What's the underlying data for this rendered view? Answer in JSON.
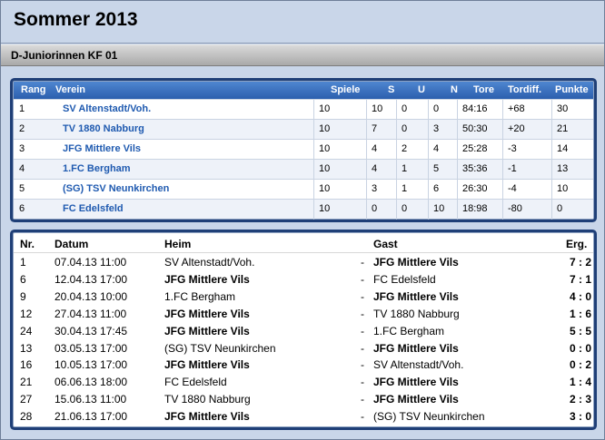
{
  "page_title": "Sommer 2013",
  "subtitle": "D-Juniorinnen  KF 01",
  "standings": {
    "headers": {
      "rang": "Rang",
      "verein": "Verein",
      "spiele": "Spiele",
      "s": "S",
      "u": "U",
      "n": "N",
      "tore": "Tore",
      "tordiff": "Tordiff.",
      "punkte": "Punkte"
    },
    "rows": [
      {
        "rang": "1",
        "verein": "SV Altenstadt/Voh.",
        "spiele": "10",
        "s": "10",
        "u": "0",
        "n": "0",
        "tore": "84:16",
        "tordiff": "+68",
        "punkte": "30"
      },
      {
        "rang": "2",
        "verein": "TV 1880 Nabburg",
        "spiele": "10",
        "s": "7",
        "u": "0",
        "n": "3",
        "tore": "50:30",
        "tordiff": "+20",
        "punkte": "21"
      },
      {
        "rang": "3",
        "verein": "JFG Mittlere Vils",
        "spiele": "10",
        "s": "4",
        "u": "2",
        "n": "4",
        "tore": "25:28",
        "tordiff": "-3",
        "punkte": "14"
      },
      {
        "rang": "4",
        "verein": "1.FC Bergham",
        "spiele": "10",
        "s": "4",
        "u": "1",
        "n": "5",
        "tore": "35:36",
        "tordiff": "-1",
        "punkte": "13"
      },
      {
        "rang": "5",
        "verein": "(SG) TSV Neunkirchen",
        "spiele": "10",
        "s": "3",
        "u": "1",
        "n": "6",
        "tore": "26:30",
        "tordiff": "-4",
        "punkte": "10"
      },
      {
        "rang": "6",
        "verein": "FC Edelsfeld",
        "spiele": "10",
        "s": "0",
        "u": "0",
        "n": "10",
        "tore": "18:98",
        "tordiff": "-80",
        "punkte": "0"
      }
    ]
  },
  "fixtures": {
    "headers": {
      "nr": "Nr.",
      "datum": "Datum",
      "heim": "Heim",
      "gast": "Gast",
      "erg": "Erg."
    },
    "rows": [
      {
        "nr": "1",
        "datum": "07.04.13 11:00",
        "heim": "SV Altenstadt/Voh.",
        "dash": "-",
        "gast": "JFG Mittlere Vils",
        "erg": "7 : 2",
        "home_bold": false
      },
      {
        "nr": "6",
        "datum": "12.04.13 17:00",
        "heim": "JFG Mittlere Vils",
        "dash": "-",
        "gast": "FC Edelsfeld",
        "erg": "7 : 1",
        "home_bold": true
      },
      {
        "nr": "9",
        "datum": "20.04.13 10:00",
        "heim": "1.FC Bergham",
        "dash": "-",
        "gast": "JFG Mittlere Vils",
        "erg": "4 : 0",
        "home_bold": false
      },
      {
        "nr": "12",
        "datum": "27.04.13 11:00",
        "heim": "JFG Mittlere Vils",
        "dash": "-",
        "gast": "TV 1880 Nabburg",
        "erg": "1 : 6",
        "home_bold": true
      },
      {
        "nr": "24",
        "datum": "30.04.13 17:45",
        "heim": "JFG Mittlere Vils",
        "dash": "-",
        "gast": "1.FC Bergham",
        "erg": "5 : 5",
        "home_bold": true
      },
      {
        "nr": "13",
        "datum": "03.05.13 17:00",
        "heim": "(SG) TSV Neunkirchen",
        "dash": "-",
        "gast": "JFG Mittlere Vils",
        "erg": "0 : 0",
        "home_bold": false
      },
      {
        "nr": "16",
        "datum": "10.05.13 17:00",
        "heim": "JFG Mittlere Vils",
        "dash": "-",
        "gast": "SV Altenstadt/Voh.",
        "erg": "0 : 2",
        "home_bold": true
      },
      {
        "nr": "21",
        "datum": "06.06.13 18:00",
        "heim": "FC Edelsfeld",
        "dash": "-",
        "gast": "JFG Mittlere Vils",
        "erg": "1 : 4",
        "home_bold": false
      },
      {
        "nr": "27",
        "datum": "15.06.13 11:00",
        "heim": "TV 1880 Nabburg",
        "dash": "-",
        "gast": "JFG Mittlere Vils",
        "erg": "2 : 3",
        "home_bold": false
      },
      {
        "nr": "28",
        "datum": "21.06.13 17:00",
        "heim": "JFG Mittlere Vils",
        "dash": "-",
        "gast": "(SG) TSV Neunkirchen",
        "erg": "3 : 0",
        "home_bold": true
      }
    ]
  }
}
